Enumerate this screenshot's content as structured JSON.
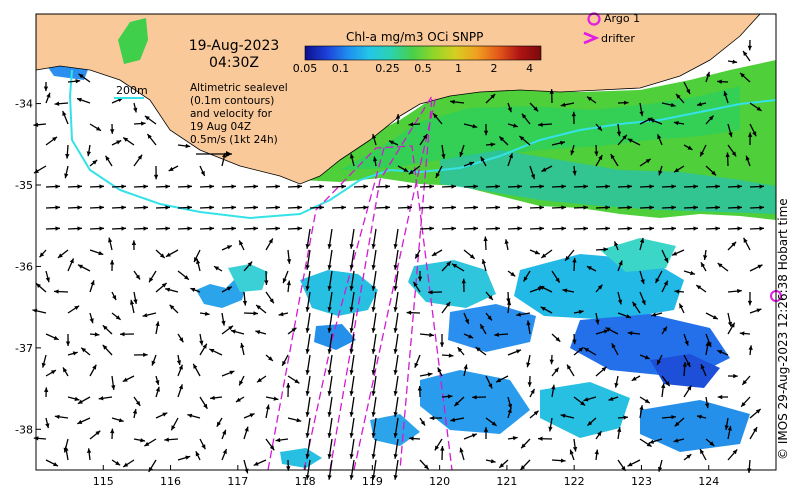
{
  "title": {
    "date": "19-Aug-2023",
    "time": "04:30Z"
  },
  "colorbar": {
    "title": "Chl-a mg/m3 OCi SNPP",
    "ticks": [
      "0.05",
      "0.1",
      "0.25",
      "0.5",
      "1",
      "2",
      "4"
    ],
    "tick_values": [
      0.05,
      0.1,
      0.25,
      0.5,
      1,
      2,
      4
    ],
    "scale": "log",
    "range": [
      0.05,
      5
    ],
    "colors": [
      "#0b0f8c",
      "#1d3fd8",
      "#1e8ef0",
      "#23c6e8",
      "#2bd3b0",
      "#48cf4a",
      "#8fd628",
      "#d6cf22",
      "#f0a020",
      "#e55a1a",
      "#b01414",
      "#7a0a0a"
    ]
  },
  "altimetry_note": {
    "lines": [
      "Altimetric sealevel",
      "(0.1m contours)",
      "and velocity for",
      "19 Aug 04Z",
      "0.5m/s (1kt 24h)"
    ]
  },
  "depth_label": "200m",
  "legend": {
    "argo": "Argo 1",
    "drifter": "drifter"
  },
  "credit": "© IMOS 29-Aug-2023 12:26:38 Hobart time",
  "axes": {
    "x_ticks": [
      "115",
      "116",
      "117",
      "118",
      "119",
      "120",
      "121",
      "122",
      "123",
      "124"
    ],
    "x_values": [
      115,
      116,
      117,
      118,
      119,
      120,
      121,
      122,
      123,
      124
    ],
    "y_ticks": [
      "-34",
      "-35",
      "-36",
      "-37",
      "-38"
    ],
    "y_values": [
      -34,
      -35,
      -36,
      -37,
      -38
    ],
    "lon_range": [
      114.0,
      125.0
    ],
    "lat_range": [
      -38.5,
      -32.9
    ]
  },
  "colors": {
    "land": "#f9c99a",
    "coast": "#000000",
    "isobath": "#35e2e8",
    "drifter_track": "#d21ad2",
    "argo_marker": "#e21ce2",
    "arrows": "#000000"
  }
}
